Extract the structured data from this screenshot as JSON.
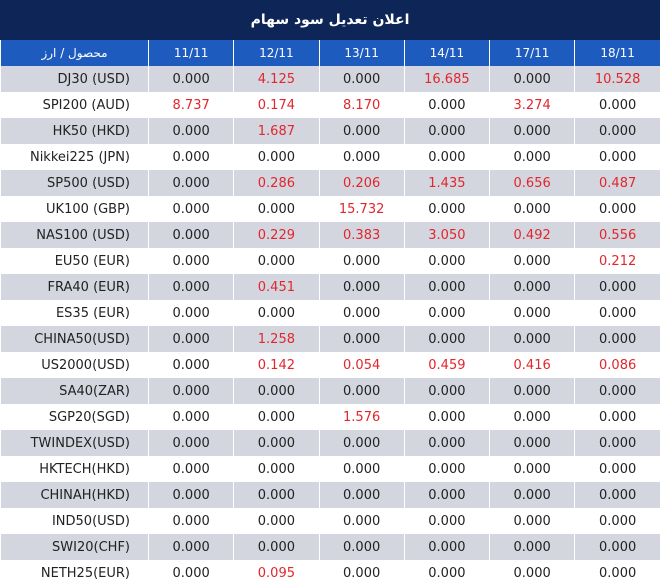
{
  "header": {
    "title": "اعلان تعدیل سود سهام"
  },
  "table": {
    "columns": [
      "محصول / ارز",
      "11/11",
      "12/11",
      "13/11",
      "14/11",
      "17/11",
      "18/11"
    ],
    "rows": [
      [
        "DJ30 (USD)",
        "0.000",
        "4.125",
        "0.000",
        "16.685",
        "0.000",
        "10.528"
      ],
      [
        "SPI200 (AUD)",
        "8.737",
        "0.174",
        "8.170",
        "0.000",
        "3.274",
        "0.000"
      ],
      [
        "HK50 (HKD)",
        "0.000",
        "1.687",
        "0.000",
        "0.000",
        "0.000",
        "0.000"
      ],
      [
        "Nikkei225 (JPN)",
        "0.000",
        "0.000",
        "0.000",
        "0.000",
        "0.000",
        "0.000"
      ],
      [
        "SP500 (USD)",
        "0.000",
        "0.286",
        "0.206",
        "1.435",
        "0.656",
        "0.487"
      ],
      [
        "UK100 (GBP)",
        "0.000",
        "0.000",
        "15.732",
        "0.000",
        "0.000",
        "0.000"
      ],
      [
        "NAS100 (USD)",
        "0.000",
        "0.229",
        "0.383",
        "3.050",
        "0.492",
        "0.556"
      ],
      [
        "EU50 (EUR)",
        "0.000",
        "0.000",
        "0.000",
        "0.000",
        "0.000",
        "0.212"
      ],
      [
        "FRA40 (EUR)",
        "0.000",
        "0.451",
        "0.000",
        "0.000",
        "0.000",
        "0.000"
      ],
      [
        "ES35 (EUR)",
        "0.000",
        "0.000",
        "0.000",
        "0.000",
        "0.000",
        "0.000"
      ],
      [
        "CHINA50(USD)",
        "0.000",
        "1.258",
        "0.000",
        "0.000",
        "0.000",
        "0.000"
      ],
      [
        "US2000(USD)",
        "0.000",
        "0.142",
        "0.054",
        "0.459",
        "0.416",
        "0.086"
      ],
      [
        "SA40(ZAR)",
        "0.000",
        "0.000",
        "0.000",
        "0.000",
        "0.000",
        "0.000"
      ],
      [
        "SGP20(SGD)",
        "0.000",
        "0.000",
        "1.576",
        "0.000",
        "0.000",
        "0.000"
      ],
      [
        "TWINDEX(USD)",
        "0.000",
        "0.000",
        "0.000",
        "0.000",
        "0.000",
        "0.000"
      ],
      [
        "HKTECH(HKD)",
        "0.000",
        "0.000",
        "0.000",
        "0.000",
        "0.000",
        "0.000"
      ],
      [
        "CHINAH(HKD)",
        "0.000",
        "0.000",
        "0.000",
        "0.000",
        "0.000",
        "0.000"
      ],
      [
        "IND50(USD)",
        "0.000",
        "0.000",
        "0.000",
        "0.000",
        "0.000",
        "0.000"
      ],
      [
        "SWI20(CHF)",
        "0.000",
        "0.000",
        "0.000",
        "0.000",
        "0.000",
        "0.000"
      ],
      [
        "NETH25(EUR)",
        "0.000",
        "0.095",
        "0.000",
        "0.000",
        "0.000",
        "0.000"
      ]
    ]
  }
}
